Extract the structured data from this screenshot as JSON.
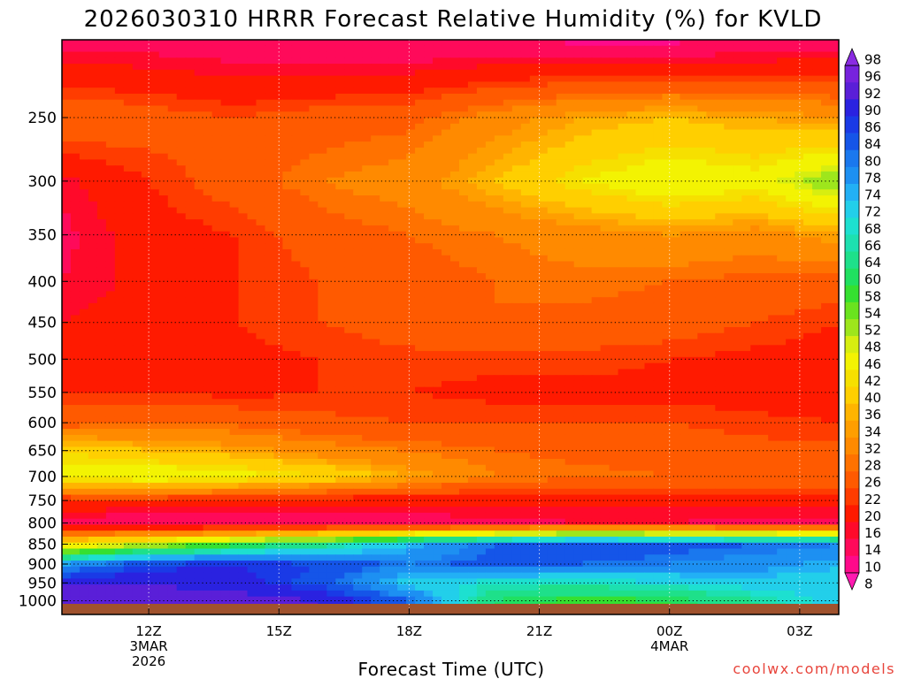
{
  "chart_data": {
    "type": "heatmap",
    "title": "2026030310 HRRR Forecast Relative Humidity (%) for KVLD",
    "xlabel": "Forecast Time (UTC)",
    "ylabel": "",
    "watermark": "coolwx.com/models",
    "x_ticks": [
      {
        "hour": 12,
        "lines": [
          "12Z",
          "3MAR",
          "2026"
        ]
      },
      {
        "hour": 15,
        "lines": [
          "15Z"
        ]
      },
      {
        "hour": 18,
        "lines": [
          "18Z"
        ]
      },
      {
        "hour": 21,
        "lines": [
          "21Z"
        ]
      },
      {
        "hour": 24,
        "lines": [
          "00Z",
          "4MAR"
        ]
      },
      {
        "hour": 27,
        "lines": [
          "03Z"
        ]
      }
    ],
    "xlim": [
      10.0,
      27.9
    ],
    "y_ticks": [
      250,
      300,
      350,
      400,
      450,
      500,
      550,
      600,
      650,
      700,
      750,
      800,
      850,
      900,
      950,
      1000
    ],
    "ylim_pressure_hPa": [
      200,
      1040
    ],
    "hours": [
      10,
      12,
      14,
      16,
      18,
      20,
      22,
      24,
      26,
      28
    ],
    "levels": [
      200,
      250,
      300,
      350,
      400,
      450,
      500,
      550,
      600,
      650,
      700,
      750,
      800,
      850,
      900,
      950,
      1000
    ],
    "rh_grid": [
      [
        12,
        12,
        11,
        10,
        10,
        10,
        9,
        9,
        10,
        11
      ],
      [
        26,
        24,
        22,
        24,
        25,
        30,
        34,
        36,
        34,
        32
      ],
      [
        15,
        20,
        24,
        28,
        30,
        36,
        42,
        46,
        44,
        52
      ],
      [
        13,
        18,
        20,
        24,
        26,
        28,
        30,
        32,
        30,
        34
      ],
      [
        14,
        17,
        20,
        22,
        24,
        26,
        27,
        26,
        25,
        24
      ],
      [
        16,
        18,
        20,
        22,
        24,
        26,
        25,
        24,
        22,
        20
      ],
      [
        17,
        18,
        19,
        20,
        21,
        21,
        21,
        20,
        19,
        18
      ],
      [
        20,
        20,
        19,
        20,
        20,
        19,
        19,
        19,
        18,
        18
      ],
      [
        24,
        26,
        25,
        23,
        22,
        22,
        22,
        22,
        21,
        20
      ],
      [
        40,
        36,
        34,
        30,
        28,
        26,
        25,
        24,
        23,
        23
      ],
      [
        44,
        46,
        44,
        40,
        34,
        28,
        27,
        26,
        26,
        26
      ],
      [
        19,
        19,
        18,
        18,
        17,
        17,
        17,
        17,
        17,
        17
      ],
      [
        12,
        11,
        11,
        11,
        12,
        13,
        14,
        14,
        13,
        13
      ],
      [
        40,
        48,
        56,
        62,
        72,
        80,
        84,
        82,
        80,
        78
      ],
      [
        74,
        84,
        86,
        84,
        78,
        82,
        80,
        78,
        76,
        72
      ],
      [
        90,
        90,
        88,
        82,
        70,
        66,
        66,
        68,
        70,
        70
      ],
      [
        92,
        92,
        92,
        90,
        80,
        60,
        56,
        58,
        64,
        70
      ]
    ],
    "colorbar": {
      "labels": [
        98,
        96,
        92,
        90,
        86,
        84,
        80,
        78,
        74,
        72,
        68,
        66,
        64,
        60,
        58,
        54,
        52,
        48,
        46,
        42,
        40,
        36,
        34,
        32,
        28,
        26,
        22,
        20,
        16,
        14,
        10,
        8
      ],
      "colors": [
        "#8a2be2",
        "#7722dd",
        "#5a1fd8",
        "#2a22e0",
        "#1a3ae6",
        "#1555e8",
        "#1a78ee",
        "#1d90f2",
        "#22b0f5",
        "#22cfea",
        "#1de0d0",
        "#1de0b0",
        "#1ee08a",
        "#20e060",
        "#35e030",
        "#6ae31e",
        "#9ee61c",
        "#d7ee10",
        "#f3f302",
        "#f6e000",
        "#ffcf00",
        "#ffb400",
        "#ff9e00",
        "#ff8a00",
        "#ff7200",
        "#ff5a00",
        "#ff3c00",
        "#ff1a00",
        "#ff0a2a",
        "#ff0a5a",
        "#ff0a8a",
        "#ff1ab0"
      ]
    }
  }
}
